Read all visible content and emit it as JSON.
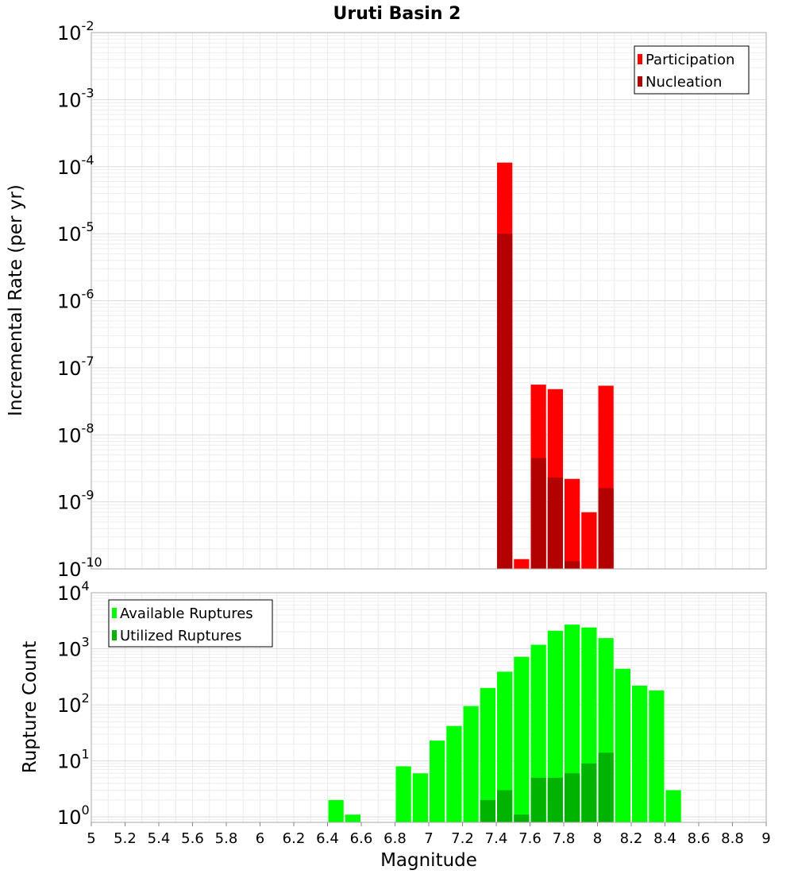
{
  "chart_data": [
    {
      "type": "bar",
      "title": "Uruti Basin 2",
      "xlabel": "",
      "ylabel": "Incremental Rate (per yr)",
      "yscale": "log",
      "ylim": [
        1e-10,
        0.01
      ],
      "xlim": [
        5,
        9
      ],
      "bin_width": 0.1,
      "y_ticks": [
        {
          "base": "10",
          "exp": "-10"
        },
        {
          "base": "10",
          "exp": "-9"
        },
        {
          "base": "10",
          "exp": "-8"
        },
        {
          "base": "10",
          "exp": "-7"
        },
        {
          "base": "10",
          "exp": "-6"
        },
        {
          "base": "10",
          "exp": "-5"
        },
        {
          "base": "10",
          "exp": "-4"
        },
        {
          "base": "10",
          "exp": "-3"
        },
        {
          "base": "10",
          "exp": "-2"
        }
      ],
      "legend": {
        "position": "top-right",
        "entries": [
          {
            "label": "Participation",
            "color": "#ff0000"
          },
          {
            "label": "Nucleation",
            "color": "#b30000"
          }
        ]
      },
      "series": [
        {
          "name": "Participation",
          "color": "#ff0000",
          "points": [
            [
              7.45,
              0.000115
            ],
            [
              7.55,
              1.4e-10
            ],
            [
              7.65,
              5.6e-08
            ],
            [
              7.75,
              4.8e-08
            ],
            [
              7.85,
              2.2e-09
            ],
            [
              7.95,
              7e-10
            ],
            [
              8.05,
              5.4e-08
            ]
          ]
        },
        {
          "name": "Nucleation",
          "color": "#b30000",
          "points": [
            [
              7.45,
              1e-05
            ],
            [
              7.65,
              4.5e-09
            ],
            [
              7.75,
              2.3e-09
            ],
            [
              7.85,
              1.3e-10
            ],
            [
              8.05,
              1.6e-09
            ]
          ]
        }
      ]
    },
    {
      "type": "bar",
      "title": "",
      "xlabel": "Magnitude",
      "ylabel": "Rupture Count",
      "yscale": "log",
      "ylim": [
        0.8,
        10000
      ],
      "xlim": [
        5,
        9
      ],
      "bin_width": 0.1,
      "y_ticks": [
        {
          "base": "10",
          "exp": "0"
        },
        {
          "base": "10",
          "exp": "1"
        },
        {
          "base": "10",
          "exp": "2"
        },
        {
          "base": "10",
          "exp": "3"
        },
        {
          "base": "10",
          "exp": "4"
        }
      ],
      "x_ticks": [
        "5",
        "5.2",
        "5.4",
        "5.6",
        "5.8",
        "6",
        "6.2",
        "6.4",
        "6.6",
        "6.8",
        "7",
        "7.2",
        "7.4",
        "7.6",
        "7.8",
        "8",
        "8.2",
        "8.4",
        "8.6",
        "8.8",
        "9"
      ],
      "legend": {
        "position": "top-left",
        "entries": [
          {
            "label": "Available Ruptures",
            "color": "#00ff00"
          },
          {
            "label": "Utilized Ruptures",
            "color": "#00b300"
          }
        ]
      },
      "series": [
        {
          "name": "Available Ruptures",
          "color": "#00ff00",
          "points": [
            [
              6.45,
              2
            ],
            [
              6.55,
              1.1
            ],
            [
              6.85,
              8
            ],
            [
              6.95,
              6
            ],
            [
              7.05,
              23
            ],
            [
              7.15,
              42
            ],
            [
              7.25,
              95
            ],
            [
              7.35,
              200
            ],
            [
              7.45,
              390
            ],
            [
              7.55,
              720
            ],
            [
              7.65,
              1180
            ],
            [
              7.75,
              2100
            ],
            [
              7.85,
              2700
            ],
            [
              7.95,
              2400
            ],
            [
              8.05,
              1550
            ],
            [
              8.15,
              440
            ],
            [
              8.25,
              220
            ],
            [
              8.35,
              180
            ],
            [
              8.45,
              3
            ]
          ]
        },
        {
          "name": "Utilized Ruptures",
          "color": "#00b300",
          "points": [
            [
              7.35,
              2
            ],
            [
              7.45,
              3
            ],
            [
              7.55,
              1.1
            ],
            [
              7.65,
              5
            ],
            [
              7.75,
              5
            ],
            [
              7.85,
              6
            ],
            [
              7.95,
              9
            ],
            [
              8.05,
              14
            ]
          ]
        }
      ]
    }
  ]
}
